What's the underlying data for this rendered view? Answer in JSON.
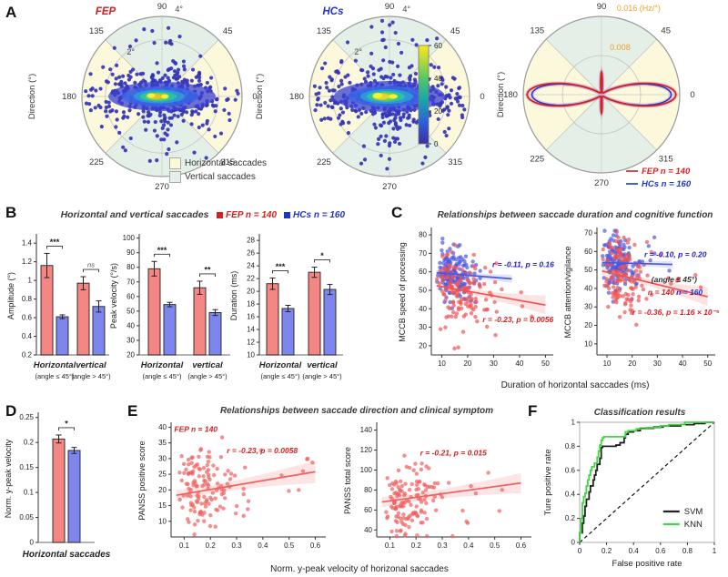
{
  "figure": {
    "bg": "#ffffff"
  },
  "panels": {
    "A": {
      "label": "A",
      "legend": [
        {
          "label": "Horizontal saccades",
          "color": "#fbf8dc"
        },
        {
          "label": "Vertical saccades",
          "color": "#e3efe7"
        }
      ]
    },
    "B": {
      "label": "B",
      "title": "Horizontal and vertical saccades",
      "legend": [
        {
          "label": "FEP n = 140",
          "color": "#d42222"
        },
        {
          "label": "HCs n = 160",
          "color": "#2233cc"
        }
      ]
    },
    "C": {
      "label": "C",
      "title": "Relationships between saccade duration and cognitive function",
      "xlabel": "Duration of horizontal saccades (ms)"
    },
    "D": {
      "label": "D"
    },
    "E": {
      "label": "E",
      "title": "Relationships between saccade direction and clinical symptom",
      "xlabel": "Norm. y-peak velocity of horizonal saccades"
    },
    "F": {
      "label": "F",
      "title": "Classification results"
    }
  },
  "chart_data": [
    {
      "id": "fep-polar",
      "type": "polar_scatter",
      "title": "FEP",
      "title_color": "#cc2020",
      "ylabel": "Direction (°)",
      "angle_labels": [
        "0",
        "45",
        "90",
        "135",
        "180",
        "225",
        "270",
        "315"
      ],
      "radial_labels": [
        {
          "text": "2°",
          "a": 125,
          "r": 0.68
        },
        {
          "text": "4°",
          "a": 79,
          "r": 1.11
        }
      ],
      "sector_h": "#fbf8dc",
      "sector_v": "#e3efe7",
      "seed": 7,
      "n": 430,
      "dot": "#3434b6",
      "h": [
        0.45,
        0.16
      ],
      "v": [
        0.1,
        0.42
      ],
      "core": [
        [
          0,
          0,
          118,
          32,
          "#3b40d0",
          0.75
        ],
        [
          -2,
          0,
          84,
          22,
          "#3868e6",
          0.8
        ],
        [
          -3,
          0,
          56,
          15,
          "#2aa0d4",
          0.85
        ],
        [
          -4,
          0,
          40,
          11,
          "#2cc89e",
          0.9
        ],
        [
          -5,
          0,
          26,
          8,
          "#86d438",
          0.9
        ],
        [
          -8,
          0,
          15,
          6,
          "#e8c22c",
          0.95
        ],
        [
          -12,
          -1,
          9,
          5,
          "#f8ef3a",
          1
        ],
        [
          3,
          0,
          8,
          5,
          "#f8ef3a",
          1
        ]
      ]
    },
    {
      "id": "hcs-polar",
      "type": "polar_scatter",
      "title": "HCs",
      "title_color": "#2233cc",
      "ylabel": "Direction (°)",
      "angle_labels": [
        "0",
        "45",
        "90",
        "135",
        "180",
        "225",
        "270",
        "315"
      ],
      "radial_labels": [
        {
          "text": "2°",
          "a": 125,
          "r": 0.68
        },
        {
          "text": "4°",
          "a": 79,
          "r": 1.11
        }
      ],
      "sector_h": "#fbf8dc",
      "sector_v": "#e3efe7",
      "seed": 23,
      "n": 500,
      "dot": "#3434b6",
      "h": [
        0.5,
        0.16
      ],
      "v": [
        0.1,
        0.44
      ],
      "core": [
        [
          0,
          0,
          122,
          34,
          "#3b40d0",
          0.75
        ],
        [
          -2,
          0,
          88,
          23,
          "#3868e6",
          0.8
        ],
        [
          -3,
          0,
          58,
          16,
          "#2aa0d4",
          0.85
        ],
        [
          -4,
          0,
          42,
          12,
          "#2cc89e",
          0.9
        ],
        [
          -5,
          0,
          28,
          9,
          "#86d438",
          0.9
        ],
        [
          -9,
          0,
          18,
          7,
          "#ecd32e",
          0.95
        ],
        [
          -13,
          -1,
          11,
          6,
          "#f8ef3a",
          1
        ],
        [
          4,
          0,
          10,
          5,
          "#f8ef3a",
          1
        ]
      ]
    },
    {
      "id": "colorbar",
      "type": "colorbar",
      "ticks": [
        0,
        20,
        40,
        60
      ],
      "stops": [
        [
          0,
          "#3d2f9e"
        ],
        [
          0.22,
          "#2e5fd8"
        ],
        [
          0.45,
          "#18a7a8"
        ],
        [
          0.66,
          "#52c76a"
        ],
        [
          0.85,
          "#b9d937"
        ],
        [
          1,
          "#f9e721"
        ]
      ]
    },
    {
      "id": "rate-polar",
      "type": "polar_line",
      "ylabel": "Direction (°)",
      "angle_labels": [
        "0",
        "45",
        "90",
        "135",
        "180",
        "225",
        "270",
        "315"
      ],
      "radial_labels": [
        {
          "text": "0.008",
          "a": 80,
          "r": 0.615,
          "anchor": "start"
        },
        {
          "text": "0.016 (Hz/°)",
          "a": 80,
          "r": 1.12,
          "anchor": "start"
        }
      ],
      "radial_color": "#eda22b",
      "sector_h": "#fbf8dc",
      "sector_v": "#e3efe7",
      "halo": "#b48ad0",
      "series": [
        {
          "name": "FEP n = 140",
          "color": "#d42222",
          "amp": 0.92,
          "spike": 0.26
        },
        {
          "name": "HCs n = 160",
          "color": "#2233cc",
          "amp": 0.86,
          "spike": 0.17
        }
      ]
    },
    {
      "id": "bar-amplitude",
      "type": "bar",
      "ylabel": "Amplitude (°)",
      "ylim": [
        0.2,
        1.47
      ],
      "yticks": [
        0.2,
        0.4,
        0.6,
        0.8,
        1,
        1.2,
        1.4
      ],
      "margins": {
        "l": 35,
        "r": 25,
        "t": 12,
        "b": 46
      },
      "colors": [
        "#f48684",
        "#7e86ee"
      ],
      "groups": [
        {
          "label": "Horizontal",
          "sub": "(angle ≤ 45°)",
          "sig": "***"
        },
        {
          "label": "vertical",
          "sub": "(angle > 45°)",
          "sig": "ns"
        }
      ],
      "values": [
        [
          1.16,
          0.61
        ],
        [
          0.97,
          0.72
        ]
      ],
      "errors": [
        [
          0.13,
          0.02
        ],
        [
          0.07,
          0.06
        ]
      ]
    },
    {
      "id": "bar-peak",
      "type": "bar",
      "ylabel": "Peak velocity (°/s)",
      "ylim": [
        20,
        101
      ],
      "yticks": [
        20,
        30,
        40,
        50,
        60,
        70,
        80,
        90,
        100
      ],
      "margins": {
        "l": 35,
        "r": 10,
        "t": 12,
        "b": 46
      },
      "colors": [
        "#f48684",
        "#7e86ee"
      ],
      "groups": [
        {
          "label": "Horizontal",
          "sub": "(angle ≤ 45°)",
          "sig": "***"
        },
        {
          "label": "vertical",
          "sub": "(angle > 45°)",
          "sig": "**"
        }
      ],
      "values": [
        [
          79,
          54.5
        ],
        [
          66,
          49
        ]
      ],
      "errors": [
        [
          5,
          1.5
        ],
        [
          4.5,
          2
        ]
      ]
    },
    {
      "id": "bar-duration",
      "type": "bar",
      "ylabel": "Duration (ms)",
      "ylim": [
        10,
        28.6
      ],
      "yticks": [
        10,
        12,
        14,
        16,
        18,
        20,
        22,
        24,
        26,
        28
      ],
      "margins": {
        "l": 35,
        "r": 25,
        "t": 12,
        "b": 46
      },
      "colors": [
        "#f48684",
        "#7e86ee"
      ],
      "groups": [
        {
          "label": "Horizontal",
          "sub": "(angle ≤ 45°)",
          "sig": "***"
        },
        {
          "label": "vertical",
          "sub": "(angle > 45°)",
          "sig": "*"
        }
      ],
      "values": [
        [
          21.2,
          17.3
        ],
        [
          23,
          20.3
        ]
      ],
      "errors": [
        [
          0.9,
          0.5
        ],
        [
          0.8,
          0.8
        ]
      ]
    },
    {
      "id": "scatter-speed",
      "type": "scatter",
      "ylabel": "MCCB speed of processing",
      "ylim": [
        15,
        83
      ],
      "yticks": [
        20,
        30,
        40,
        50,
        60,
        70,
        80
      ],
      "xlim": [
        6,
        53
      ],
      "xticks": [
        10,
        20,
        30,
        40,
        50
      ],
      "margins": {
        "l": 38,
        "r": 12,
        "t": 6,
        "b": 32
      },
      "series": [
        {
          "name": "HCs n = 160",
          "color": "#4d57e2",
          "n": 160,
          "seed": 31,
          "x0": 8,
          "xsig": 6,
          "xjit": 4,
          "xmax": 38,
          "tail": 0.02,
          "line": [
            [
              8,
              59.5
            ],
            [
              37,
              56.2
            ]
          ],
          "ysig": 6.5,
          "band": [
            1.2,
            2.2
          ]
        },
        {
          "name": "FEP n = 140",
          "color": "#ef5350",
          "n": 140,
          "seed": 32,
          "x0": 8,
          "xsig": 8.5,
          "xjit": 5,
          "xmax": 51,
          "tail": 0.05,
          "line": [
            [
              8,
              52.5
            ],
            [
              50,
              42
            ]
          ],
          "ysig": 10,
          "band": [
            1.5,
            5
          ]
        }
      ],
      "annotations": [
        {
          "text": "r = -0.11, p = 0.16",
          "color": "#2323c8",
          "fx": 0.5,
          "fy": 0.3
        },
        {
          "text": "r = -0.23, p = 0.0056",
          "color": "#d41f1f",
          "fx": 0.42,
          "fy": 0.74
        }
      ]
    },
    {
      "id": "scatter-attention",
      "type": "scatter",
      "ylabel": "MCCB attention/vigilance",
      "ylim": [
        4,
        72
      ],
      "yticks": [
        10,
        20,
        30,
        40,
        50,
        60,
        70
      ],
      "xlim": [
        6,
        53
      ],
      "xticks": [
        10,
        20,
        30,
        40,
        50
      ],
      "margins": {
        "l": 38,
        "r": 12,
        "t": 6,
        "b": 32
      },
      "series": [
        {
          "name": "HCs n = 160",
          "color": "#4d57e2",
          "n": 160,
          "seed": 41,
          "x0": 8,
          "xsig": 5.5,
          "xjit": 4,
          "xmax": 36,
          "tail": 0.02,
          "line": [
            [
              8,
              54
            ],
            [
              36,
              53
            ]
          ],
          "ysig": 7.5,
          "band": [
            1.2,
            2
          ]
        },
        {
          "name": "FEP n = 140",
          "color": "#ef5350",
          "n": 140,
          "seed": 42,
          "x0": 8,
          "xsig": 7.5,
          "xjit": 5,
          "xmax": 51,
          "tail": 0.05,
          "line": [
            [
              8,
              49.5
            ],
            [
              50,
              35.5
            ]
          ],
          "ysig": 10.5,
          "band": [
            1.5,
            5
          ]
        }
      ],
      "annotations": [
        {
          "text": "r = -0.10, p = 0.20",
          "color": "#2323c8",
          "fx": 0.4,
          "fy": 0.22
        },
        {
          "text": "(angle ≤ 45°)",
          "color": "#333333",
          "fx": 0.46,
          "fy": 0.42
        },
        {
          "text": "n = 140",
          "color": "#d41f1f",
          "fx": 0.43,
          "fy": 0.52
        },
        {
          "text": "n = 160",
          "color": "#2233cc",
          "fx": 0.67,
          "fy": 0.52
        },
        {
          "text": "r = -0.36, p = 1.16 × 10⁻⁵",
          "color": "#d41f1f",
          "fx": 0.3,
          "fy": 0.68
        }
      ]
    },
    {
      "id": "bar-norm",
      "type": "bar",
      "ylabel": "Norm. y-peak velocity",
      "ylim": [
        0,
        0.255
      ],
      "yticks": [
        0,
        0.05,
        0.1,
        0.15,
        0.2,
        0.25
      ],
      "margins": {
        "l": 40,
        "r": 30,
        "t": 6,
        "b": 34
      },
      "colors": [
        "#f48684",
        "#7e86ee"
      ],
      "groups": [
        {
          "label": "",
          "sub": "",
          "sig": "*"
        }
      ],
      "values": [
        [
          0.207,
          0.184
        ]
      ],
      "errors": [
        [
          0.008,
          0.006
        ]
      ],
      "xlabel": "Horizontal saccades"
    },
    {
      "id": "scatter-panss-pos",
      "type": "scatter",
      "ylabel": "PANSS positive score",
      "ylim": [
        5,
        41
      ],
      "yticks": [
        10,
        15,
        20,
        25,
        30,
        35,
        40
      ],
      "xlim": [
        0.05,
        0.64
      ],
      "xticks": [
        0.1,
        0.2,
        0.3,
        0.4,
        0.5,
        0.6
      ],
      "margins": {
        "l": 38,
        "r": 14,
        "t": 8,
        "b": 34
      },
      "series": [
        {
          "name": "FEP n = 140",
          "color": "#f0605e",
          "n": 140,
          "seed": 51,
          "x0": 0.08,
          "xsig": 0.085,
          "xjit": 0.05,
          "xmax": 0.61,
          "tail": 0.06,
          "line": [
            [
              0.07,
              18.3
            ],
            [
              0.6,
              25.8
            ]
          ],
          "ysig": 6.5,
          "band": [
            1.3,
            3.6
          ]
        }
      ],
      "annotations": [
        {
          "text": "FEP n = 140",
          "color": "#d41f1f",
          "fx": 0.02,
          "fy": 0.07
        },
        {
          "text": "r = -0.23, p = 0.0058",
          "color": "#d41f1f",
          "fx": 0.36,
          "fy": 0.26
        }
      ]
    },
    {
      "id": "scatter-panss-total",
      "type": "scatter",
      "ylabel": "PANSS total score",
      "ylim": [
        33,
        146
      ],
      "yticks": [
        40,
        60,
        80,
        100,
        120,
        140
      ],
      "xlim": [
        0.05,
        0.64
      ],
      "xticks": [
        0.1,
        0.2,
        0.3,
        0.4,
        0.5,
        0.6
      ],
      "margins": {
        "l": 38,
        "r": 14,
        "t": 8,
        "b": 34
      },
      "series": [
        {
          "name": "FEP n = 140",
          "color": "#f0605e",
          "n": 140,
          "seed": 52,
          "x0": 0.08,
          "xsig": 0.085,
          "xjit": 0.05,
          "xmax": 0.61,
          "tail": 0.06,
          "line": [
            [
              0.07,
              68
            ],
            [
              0.6,
              87
            ]
          ],
          "ysig": 18,
          "band": [
            4,
            10
          ]
        }
      ],
      "annotations": [
        {
          "text": "r = -0.21, p = 0.015",
          "color": "#d41f1f",
          "fx": 0.28,
          "fy": 0.28
        }
      ]
    },
    {
      "id": "roc",
      "type": "roc",
      "ylabel": "Ture positive rate",
      "xlabel": "False positive rate",
      "ticks": [
        0,
        0.2,
        0.4,
        0.6,
        0.8,
        1
      ],
      "margins": {
        "l": 46,
        "r": 12,
        "t": 8,
        "b": 38
      },
      "series": [
        {
          "name": "SVM",
          "color": "#222222",
          "points": [
            [
              0,
              0
            ],
            [
              0.02,
              0.08
            ],
            [
              0.03,
              0.16
            ],
            [
              0.04,
              0.22
            ],
            [
              0.05,
              0.3
            ],
            [
              0.07,
              0.36
            ],
            [
              0.08,
              0.42
            ],
            [
              0.1,
              0.47
            ],
            [
              0.11,
              0.52
            ],
            [
              0.12,
              0.56
            ],
            [
              0.13,
              0.6
            ],
            [
              0.15,
              0.65
            ],
            [
              0.16,
              0.7
            ],
            [
              0.17,
              0.79
            ],
            [
              0.27,
              0.8
            ],
            [
              0.3,
              0.81
            ],
            [
              0.33,
              0.83
            ],
            [
              0.34,
              0.87
            ],
            [
              0.36,
              0.9
            ],
            [
              0.4,
              0.92
            ],
            [
              0.45,
              0.93
            ],
            [
              0.55,
              0.95
            ],
            [
              0.62,
              0.96
            ],
            [
              0.75,
              0.97
            ],
            [
              0.85,
              0.98
            ],
            [
              0.93,
              0.99
            ],
            [
              1,
              1
            ]
          ]
        },
        {
          "name": "KNN",
          "color": "#3fd63f",
          "points": [
            [
              0,
              0
            ],
            [
              0.01,
              0.08
            ],
            [
              0.02,
              0.2
            ],
            [
              0.03,
              0.33
            ],
            [
              0.04,
              0.38
            ],
            [
              0.05,
              0.41
            ],
            [
              0.06,
              0.47
            ],
            [
              0.07,
              0.52
            ],
            [
              0.08,
              0.56
            ],
            [
              0.09,
              0.6
            ],
            [
              0.11,
              0.63
            ],
            [
              0.13,
              0.66
            ],
            [
              0.14,
              0.71
            ],
            [
              0.15,
              0.76
            ],
            [
              0.16,
              0.81
            ],
            [
              0.17,
              0.85
            ],
            [
              0.18,
              0.87
            ],
            [
              0.34,
              0.88
            ],
            [
              0.36,
              0.92
            ],
            [
              0.42,
              0.93
            ],
            [
              0.5,
              0.945
            ],
            [
              0.6,
              0.955
            ],
            [
              0.66,
              0.97
            ],
            [
              0.78,
              0.98
            ],
            [
              1,
              1
            ]
          ]
        }
      ]
    }
  ]
}
